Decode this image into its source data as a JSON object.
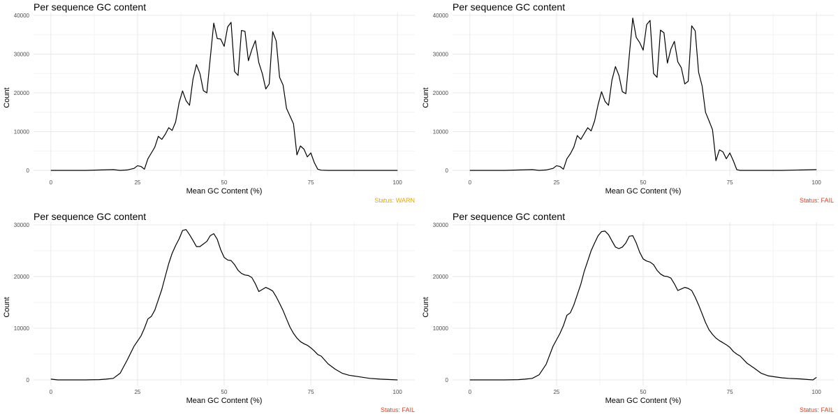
{
  "colors": {
    "warn": "#e5a50a",
    "fail": "#e8401c",
    "line": "#000000",
    "grid_major": "#e8e8e8",
    "grid_minor": "#f3f3f3"
  },
  "chart_data": [
    {
      "type": "line",
      "title": "Per sequence GC content",
      "xlabel": "Mean GC Content (%)",
      "ylabel": "Count",
      "xlim": [
        0,
        100
      ],
      "ylim": [
        0,
        40000
      ],
      "xticks": [
        0,
        25,
        50,
        75,
        100
      ],
      "yticks": [
        0,
        10000,
        20000,
        30000,
        40000
      ],
      "grid": true,
      "status": "Status: WARN",
      "status_level": "warn",
      "x": [
        0,
        10,
        18,
        20,
        22,
        24,
        25,
        26,
        27,
        28,
        29,
        30,
        31,
        32,
        33,
        34,
        35,
        36,
        37,
        38,
        39,
        40,
        41,
        42,
        43,
        44,
        45,
        46,
        47,
        48,
        49,
        50,
        51,
        52,
        53,
        54,
        55,
        56,
        57,
        58,
        59,
        60,
        61,
        62,
        63,
        64,
        65,
        66,
        67,
        68,
        69,
        70,
        71,
        72,
        73,
        74,
        75,
        76,
        77,
        78,
        80,
        85,
        90,
        100
      ],
      "y": [
        0,
        0,
        200,
        0,
        100,
        500,
        1200,
        1000,
        300,
        3000,
        4500,
        6000,
        8800,
        8000,
        9300,
        11000,
        10300,
        12500,
        17500,
        20500,
        18000,
        16800,
        23500,
        27300,
        25000,
        20600,
        20000,
        29000,
        38000,
        34000,
        33900,
        32000,
        37000,
        38200,
        25500,
        24500,
        36100,
        35900,
        28300,
        31200,
        33500,
        27800,
        25000,
        21000,
        22300,
        35800,
        33400,
        24000,
        22000,
        16000,
        14000,
        12000,
        4000,
        6300,
        5500,
        3500,
        4500,
        2000,
        300,
        50,
        0,
        0,
        0,
        0
      ]
    },
    {
      "type": "line",
      "title": "Per sequence GC content",
      "xlabel": "Mean GC Content (%)",
      "ylabel": "Count",
      "xlim": [
        0,
        100
      ],
      "ylim": [
        0,
        40000
      ],
      "xticks": [
        0,
        25,
        50,
        75,
        100
      ],
      "yticks": [
        0,
        10000,
        20000,
        30000,
        40000
      ],
      "grid": true,
      "status": "Status: FAIL",
      "status_level": "fail",
      "x": [
        0,
        10,
        18,
        20,
        22,
        24,
        25,
        26,
        27,
        28,
        29,
        30,
        31,
        32,
        33,
        34,
        35,
        36,
        37,
        38,
        39,
        40,
        41,
        42,
        43,
        44,
        45,
        46,
        47,
        48,
        49,
        50,
        51,
        52,
        53,
        54,
        55,
        56,
        57,
        58,
        59,
        60,
        61,
        62,
        63,
        64,
        65,
        66,
        67,
        68,
        69,
        70,
        71,
        72,
        73,
        74,
        75,
        76,
        77,
        78,
        80,
        85,
        90,
        100
      ],
      "y": [
        0,
        0,
        200,
        0,
        100,
        500,
        1200,
        1000,
        300,
        3000,
        4300,
        6000,
        9000,
        8000,
        9500,
        11000,
        10200,
        12800,
        17000,
        20300,
        17800,
        16800,
        23300,
        26800,
        24500,
        20300,
        19800,
        29600,
        39300,
        34300,
        33000,
        31000,
        37600,
        38700,
        25000,
        24000,
        36200,
        35500,
        27700,
        31300,
        33300,
        28000,
        26500,
        22300,
        23000,
        37300,
        36000,
        25300,
        21800,
        15000,
        12800,
        10500,
        2500,
        5300,
        4800,
        3000,
        4500,
        2500,
        200,
        0,
        0,
        0,
        0,
        200
      ]
    },
    {
      "type": "line",
      "title": "Per sequence GC content",
      "xlabel": "Mean GC Content (%)",
      "ylabel": "Count",
      "xlim": [
        0,
        100
      ],
      "ylim": [
        0,
        30000
      ],
      "xticks": [
        0,
        25,
        50,
        75,
        100
      ],
      "yticks": [
        0,
        10000,
        20000,
        30000
      ],
      "grid": true,
      "status": "Status: FAIL",
      "status_level": "fail",
      "x": [
        0,
        2,
        5,
        10,
        14,
        16,
        18,
        20,
        22,
        24,
        26,
        27,
        28,
        29,
        30,
        31,
        32,
        33,
        34,
        35,
        36,
        37,
        38,
        39,
        40,
        41,
        42,
        43,
        44,
        45,
        46,
        47,
        48,
        49,
        50,
        51,
        52,
        53,
        54,
        55,
        56,
        57,
        58,
        59,
        60,
        61,
        62,
        63,
        64,
        65,
        66,
        67,
        68,
        69,
        70,
        71,
        72,
        73,
        74,
        75,
        76,
        77,
        78,
        80,
        82,
        84,
        86,
        88,
        90,
        92,
        95,
        100
      ],
      "y": [
        150,
        0,
        0,
        0,
        50,
        150,
        300,
        1300,
        3800,
        6500,
        8500,
        10000,
        11800,
        12300,
        13500,
        15500,
        17500,
        20000,
        22500,
        24500,
        26000,
        27300,
        28900,
        29100,
        28100,
        27000,
        25800,
        25800,
        26300,
        26800,
        27900,
        28300,
        27200,
        25200,
        23700,
        23200,
        23100,
        22300,
        21200,
        20600,
        20300,
        20200,
        19800,
        18600,
        17100,
        17500,
        17900,
        17600,
        17200,
        16100,
        14800,
        13400,
        11800,
        10200,
        9000,
        8100,
        7400,
        7000,
        6700,
        6200,
        5600,
        4900,
        4600,
        3100,
        2100,
        1300,
        900,
        700,
        500,
        300,
        150,
        0
      ]
    },
    {
      "type": "line",
      "title": "Per sequence GC content",
      "xlabel": "Mean GC Content (%)",
      "ylabel": "Count",
      "xlim": [
        0,
        100
      ],
      "ylim": [
        0,
        30000
      ],
      "xticks": [
        0,
        25,
        50,
        75,
        100
      ],
      "yticks": [
        0,
        10000,
        20000,
        30000
      ],
      "grid": true,
      "status": "Status: FAIL",
      "status_level": "fail",
      "x": [
        0,
        2,
        5,
        10,
        14,
        16,
        18,
        20,
        22,
        24,
        26,
        27,
        28,
        29,
        30,
        31,
        32,
        33,
        34,
        35,
        36,
        37,
        38,
        39,
        40,
        41,
        42,
        43,
        44,
        45,
        46,
        47,
        48,
        49,
        50,
        51,
        52,
        53,
        54,
        55,
        56,
        57,
        58,
        59,
        60,
        61,
        62,
        63,
        64,
        65,
        66,
        67,
        68,
        69,
        70,
        71,
        72,
        73,
        74,
        75,
        76,
        77,
        78,
        80,
        82,
        84,
        86,
        88,
        90,
        92,
        95,
        99,
        100
      ],
      "y": [
        0,
        0,
        0,
        0,
        50,
        150,
        300,
        1000,
        3000,
        6500,
        9000,
        10500,
        12500,
        13000,
        14500,
        16500,
        18500,
        21000,
        23000,
        25000,
        26500,
        27900,
        28700,
        28800,
        28100,
        26900,
        25700,
        25400,
        25700,
        26500,
        27800,
        27900,
        26500,
        24700,
        23400,
        23000,
        22800,
        22300,
        21200,
        20500,
        20100,
        20000,
        19700,
        18600,
        17300,
        17600,
        17900,
        17700,
        17300,
        16000,
        14500,
        12800,
        11100,
        9700,
        8800,
        8100,
        7600,
        7200,
        6800,
        6300,
        5500,
        5000,
        4600,
        3200,
        2300,
        1300,
        800,
        600,
        400,
        300,
        200,
        0,
        500
      ]
    }
  ]
}
